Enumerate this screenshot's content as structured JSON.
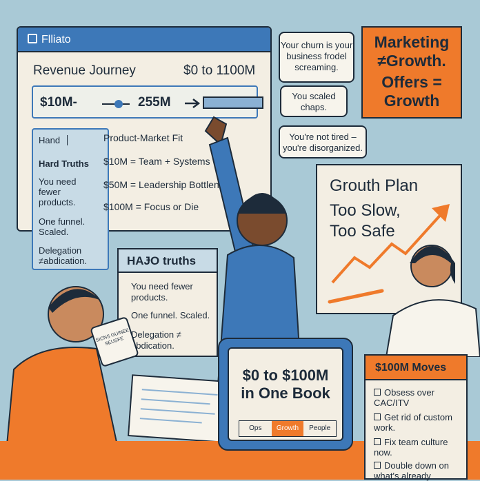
{
  "window": {
    "app_name": "Flliato",
    "revenue_title": "Revenue Journey",
    "revenue_range": "$0 to 1100M",
    "journey_start": "$10M-",
    "journey_end": "255M",
    "side_panel": {
      "tab_label": "Hand",
      "heading": "Hard Truths",
      "items": [
        "You need fewer products.",
        "One funnel. Scaled.",
        "Delegation ≠abdication."
      ]
    },
    "stages": [
      "Product-Market Fit",
      "$10M = Team + Systems",
      "$50M = Leadership Bottlen",
      "$100M = Focus or Die"
    ]
  },
  "bubbles": {
    "churn": "Your churn is your business frodel screaming.",
    "scaled": "You scaled chaps.",
    "tired": "You're not tired – you're disorganized."
  },
  "offers_card": {
    "line1": "Marketing",
    "line2": "≠Growth.",
    "line3": "Offers =",
    "line4": "Growth"
  },
  "growth_plan": {
    "title": "Grouth Plan",
    "line1": "Too Slow,",
    "line2": "Too Safe"
  },
  "truths_card": {
    "header": "HAɈO truths",
    "items": [
      "You need fewer products.",
      "One funnel. Scaled.",
      "Delegation ≠ abdication."
    ]
  },
  "mug_text": "SICNS GUINEE SEUSFE",
  "book": {
    "title_line1": "$0 to $100M",
    "title_line2": "in One Book",
    "tabs": [
      "Ops",
      "Growth",
      "People"
    ]
  },
  "moves_card": {
    "header": "$100M Moves",
    "items": [
      "Obsess over CAC/ITV",
      "Get rid of custom work.",
      "Fix team culture now.",
      "Double down on what's already"
    ]
  },
  "colors": {
    "background": "#a9c9d6",
    "accent_orange": "#ef7a2b",
    "accent_blue": "#3d78b8",
    "ink": "#1d2b3a"
  }
}
